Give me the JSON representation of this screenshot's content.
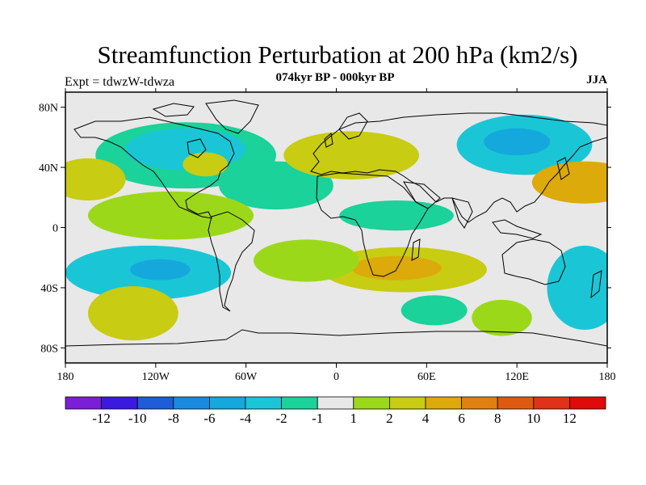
{
  "title": "Streamfunction Perturbation at 200 hPa (km2/s)",
  "subtitle": "074kyr BP - 000kyr BP",
  "left_string": "Expt = tdwzW-tdwza",
  "right_string": "JJA",
  "map": {
    "projection": "cylindrical equidistant",
    "lon_range": [
      -180,
      180
    ],
    "lat_range": [
      -90,
      90
    ],
    "lat_ticks": [
      "80N",
      "40N",
      "0",
      "40S",
      "80S"
    ],
    "lon_ticks": [
      "180",
      "120W",
      "60W",
      "0",
      "60E",
      "120E",
      "180"
    ],
    "background_color": "#e8e8e8"
  },
  "colorbar": {
    "labels": [
      "-12",
      "-10",
      "-8",
      "-6",
      "-4",
      "-2",
      "-1",
      "1",
      "2",
      "4",
      "6",
      "8",
      "10",
      "12"
    ],
    "colors": [
      "#7a1fd6",
      "#3a1ae0",
      "#1e5cd8",
      "#1a8ae0",
      "#15a8dc",
      "#1ac6d6",
      "#1ad29a",
      "#e8e8e8",
      "#9cd81a",
      "#c8cc12",
      "#dcaa0a",
      "#e08010",
      "#de5a10",
      "#e03218",
      "#e00a0a"
    ]
  },
  "regions": [
    {
      "kind": "neg",
      "level": 1,
      "lon": -100,
      "lat": 48,
      "rx": 60,
      "ry": 22
    },
    {
      "kind": "neg",
      "level": 2,
      "lon": -100,
      "lat": 52,
      "rx": 40,
      "ry": 14
    },
    {
      "kind": "neg",
      "level": 1,
      "lon": -40,
      "lat": 28,
      "rx": 38,
      "ry": 16
    },
    {
      "kind": "neg",
      "level": 2,
      "lon": 125,
      "lat": 55,
      "rx": 45,
      "ry": 20
    },
    {
      "kind": "neg",
      "level": 3,
      "lon": 120,
      "lat": 57,
      "rx": 22,
      "ry": 9
    },
    {
      "kind": "neg",
      "level": 1,
      "lon": 40,
      "lat": 8,
      "rx": 38,
      "ry": 10
    },
    {
      "kind": "neg",
      "level": 2,
      "lon": -125,
      "lat": -30,
      "rx": 55,
      "ry": 18
    },
    {
      "kind": "neg",
      "level": 3,
      "lon": -117,
      "lat": -28,
      "rx": 20,
      "ry": 7
    },
    {
      "kind": "neg",
      "level": 2,
      "lon": 165,
      "lat": -40,
      "rx": 25,
      "ry": 28
    },
    {
      "kind": "neg",
      "level": 1,
      "lon": 65,
      "lat": -55,
      "rx": 22,
      "ry": 10
    },
    {
      "kind": "pos",
      "level": 2,
      "lon": -165,
      "lat": 32,
      "rx": 25,
      "ry": 14
    },
    {
      "kind": "pos",
      "level": 2,
      "lon": -87,
      "lat": 42,
      "rx": 15,
      "ry": 8
    },
    {
      "kind": "pos",
      "level": 2,
      "lon": 10,
      "lat": 48,
      "rx": 45,
      "ry": 16
    },
    {
      "kind": "pos",
      "level": 3,
      "lon": 165,
      "lat": 30,
      "rx": 35,
      "ry": 14
    },
    {
      "kind": "pos",
      "level": 1,
      "lon": -110,
      "lat": 8,
      "rx": 55,
      "ry": 16
    },
    {
      "kind": "pos",
      "level": 2,
      "lon": 45,
      "lat": -28,
      "rx": 55,
      "ry": 15
    },
    {
      "kind": "pos",
      "level": 3,
      "lon": 40,
      "lat": -27,
      "rx": 30,
      "ry": 8
    },
    {
      "kind": "pos",
      "level": 2,
      "lon": -135,
      "lat": -57,
      "rx": 30,
      "ry": 18
    },
    {
      "kind": "pos",
      "level": 1,
      "lon": -20,
      "lat": -22,
      "rx": 35,
      "ry": 14
    },
    {
      "kind": "pos",
      "level": 1,
      "lon": 110,
      "lat": -60,
      "rx": 20,
      "ry": 12
    }
  ]
}
